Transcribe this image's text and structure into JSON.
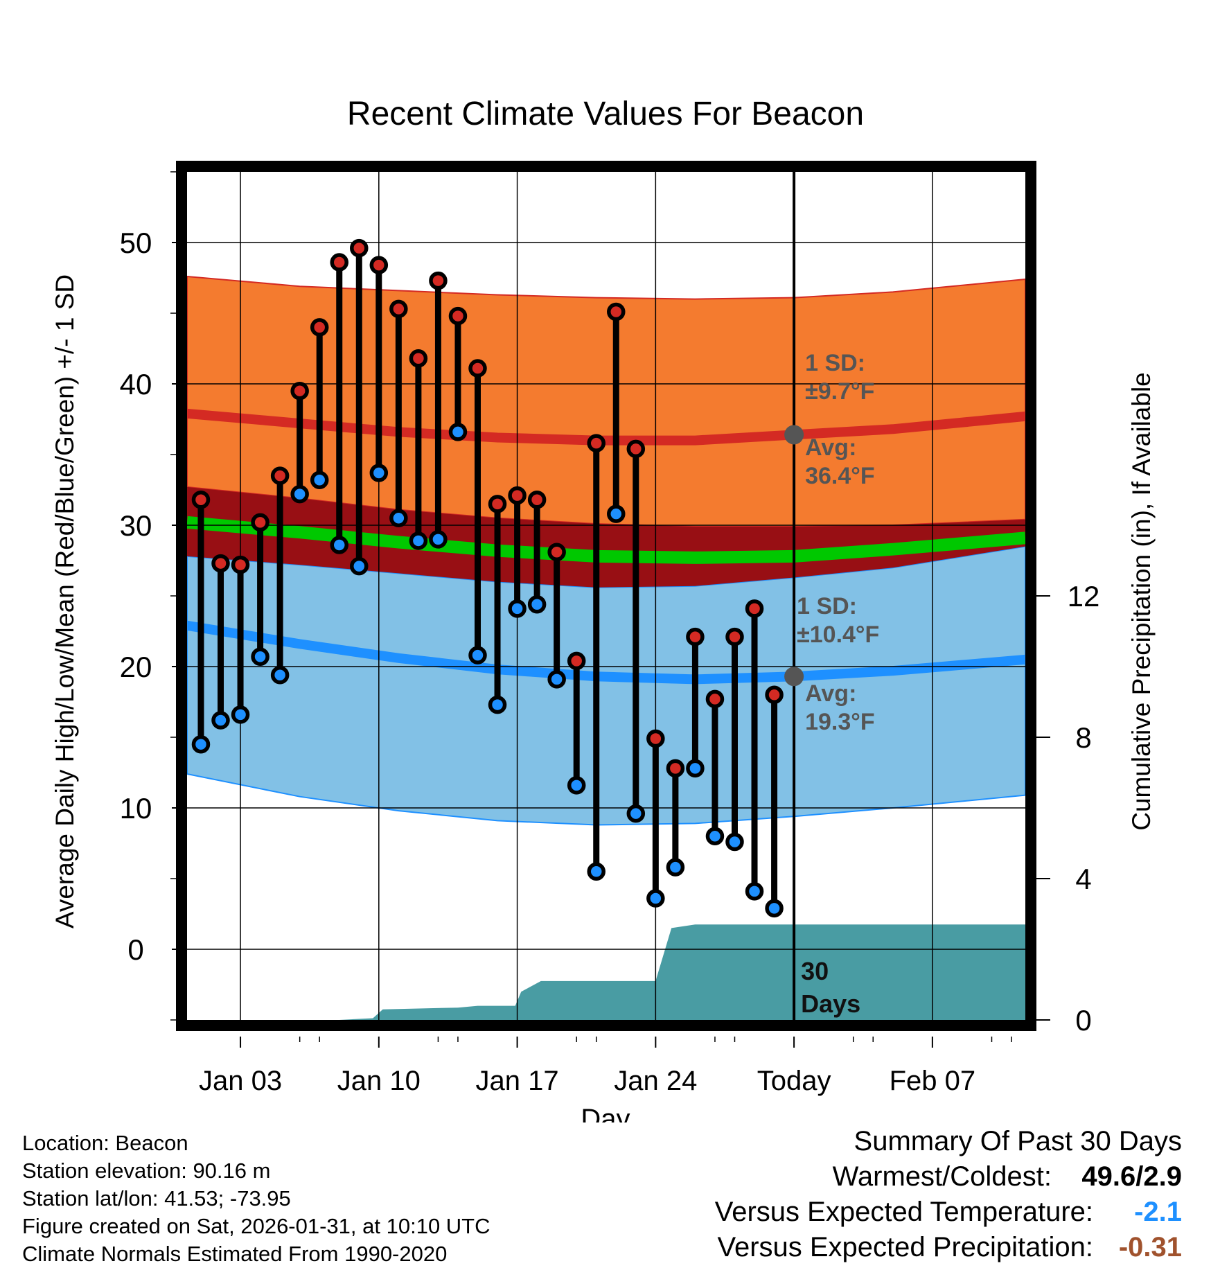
{
  "chart_data": {
    "type": "range",
    "title": "Recent Climate Values For Beacon",
    "xlabel": "Day",
    "ylabel": "Average Daily High/Low/Mean (Red/Blue/Green) +/- 1 SD",
    "y2label": "Cumulative Precipitation (in), If Available",
    "xlim": [
      -0.7,
      41.7
    ],
    "ylim": [
      -5,
      55
    ],
    "y2lim": [
      0,
      24
    ],
    "x_ticks": [
      {
        "x": 2,
        "label": "Jan 03"
      },
      {
        "x": 9,
        "label": "Jan 10"
      },
      {
        "x": 16,
        "label": "Jan 17"
      },
      {
        "x": 23,
        "label": "Jan 24"
      },
      {
        "x": 30,
        "label": "Today"
      },
      {
        "x": 37,
        "label": "Feb 07"
      }
    ],
    "y_ticks": [
      0,
      10,
      20,
      30,
      40,
      50
    ],
    "y2_ticks": [
      0,
      4,
      8,
      12
    ],
    "days": [
      0,
      1,
      2,
      3,
      4,
      5,
      6,
      7,
      8,
      9,
      10,
      11,
      12,
      13,
      14,
      15,
      16,
      17,
      18,
      19,
      20,
      21,
      22,
      23,
      24,
      25,
      26,
      27,
      28,
      29
    ],
    "highs": [
      31.8,
      27.3,
      27.2,
      30.2,
      33.5,
      39.5,
      44.0,
      48.6,
      49.6,
      48.4,
      45.3,
      41.8,
      47.3,
      44.8,
      41.1,
      31.5,
      32.1,
      31.8,
      28.1,
      20.4,
      35.8,
      45.1,
      35.4,
      14.9,
      12.8,
      22.1,
      17.7,
      22.1,
      24.1,
      18.0
    ],
    "lows": [
      14.5,
      16.2,
      16.6,
      20.7,
      19.4,
      32.2,
      33.2,
      28.6,
      27.1,
      33.7,
      30.5,
      28.9,
      29.0,
      36.6,
      20.8,
      17.3,
      24.1,
      24.4,
      19.1,
      11.6,
      5.5,
      30.8,
      9.6,
      3.6,
      5.8,
      12.8,
      8.0,
      7.6,
      4.1,
      2.9
    ],
    "normal_high": {
      "x": [
        -0.7,
        5,
        10,
        15,
        20,
        25,
        30,
        35,
        41.7
      ],
      "mean": [
        37.9,
        37.2,
        36.6,
        36.2,
        36.0,
        36.0,
        36.4,
        36.8,
        37.7
      ],
      "upper": [
        47.6,
        46.9,
        46.6,
        46.3,
        46.1,
        46.0,
        46.1,
        46.5,
        47.4
      ],
      "lower": [
        32.7,
        31.9,
        31.1,
        30.5,
        30.1,
        29.9,
        29.9,
        30.0,
        30.4
      ]
    },
    "normal_mean": {
      "x": [
        -0.7,
        5,
        10,
        15,
        20,
        25,
        30,
        35,
        41.7
      ],
      "mean": [
        30.2,
        29.5,
        28.8,
        28.2,
        27.8,
        27.7,
        27.8,
        28.3,
        29.1
      ]
    },
    "normal_low": {
      "x": [
        -0.7,
        5,
        10,
        15,
        20,
        25,
        30,
        35,
        41.7
      ],
      "mean": [
        22.9,
        21.6,
        20.6,
        19.8,
        19.3,
        19.1,
        19.3,
        19.7,
        20.5
      ],
      "upper": [
        27.8,
        27.2,
        26.6,
        26.0,
        25.6,
        25.7,
        26.3,
        27.0,
        28.5
      ],
      "lower": [
        12.4,
        10.8,
        9.8,
        9.1,
        8.8,
        8.9,
        9.4,
        10.0,
        10.9
      ]
    },
    "precip_cumulative": {
      "x": [
        -0.7,
        7,
        8.7,
        9.2,
        13,
        14,
        15.9,
        16.2,
        17.2,
        23,
        23.8,
        25,
        41.7
      ],
      "y": [
        0,
        0,
        0.05,
        0.3,
        0.35,
        0.4,
        0.4,
        0.8,
        1.1,
        1.1,
        2.6,
        2.7,
        2.7
      ]
    },
    "today_index": 30,
    "annotations": {
      "high_sd": "1 SD:",
      "high_sd_val": "±9.7°F",
      "high_avg": "Avg:",
      "high_avg_val": "36.4°F",
      "high_avg_y": 36.4,
      "low_sd": "1 SD:",
      "low_sd_val": "±10.4°F",
      "low_avg": "Avg:",
      "low_avg_val": "19.3°F",
      "low_avg_y": 19.3,
      "days_label_1": "30",
      "days_label_2": "Days"
    },
    "colors": {
      "high_band": "#f47b2f",
      "high_line": "#d42a23",
      "overlap_band": "#980f14",
      "mean_line": "#00c800",
      "low_band": "#82c1e6",
      "low_line": "#1e90ff",
      "precip": "#499ca3",
      "high_marker": "#d42a23",
      "low_marker": "#1e90ff",
      "annotation": "#555555"
    }
  },
  "info": {
    "location": "Location: Beacon",
    "elevation": "Station elevation: 90.16 m",
    "latlon": "Station lat/lon: 41.53; -73.95",
    "created": "Figure created on Sat, 2026-01-31, at 10:10 UTC",
    "normals": "Climate Normals Estimated From 1990-2020"
  },
  "summary": {
    "title": "Summary Of Past 30 Days",
    "warm_cold_label": "Warmest/Coldest:",
    "warm_cold_value": "49.6/2.9",
    "temp_label": "Versus Expected Temperature:",
    "temp_value": "-2.1",
    "temp_color": "#1e90ff",
    "precip_label": "Versus Expected Precipitation:",
    "precip_value": "-0.31",
    "precip_color": "#a0522d"
  }
}
